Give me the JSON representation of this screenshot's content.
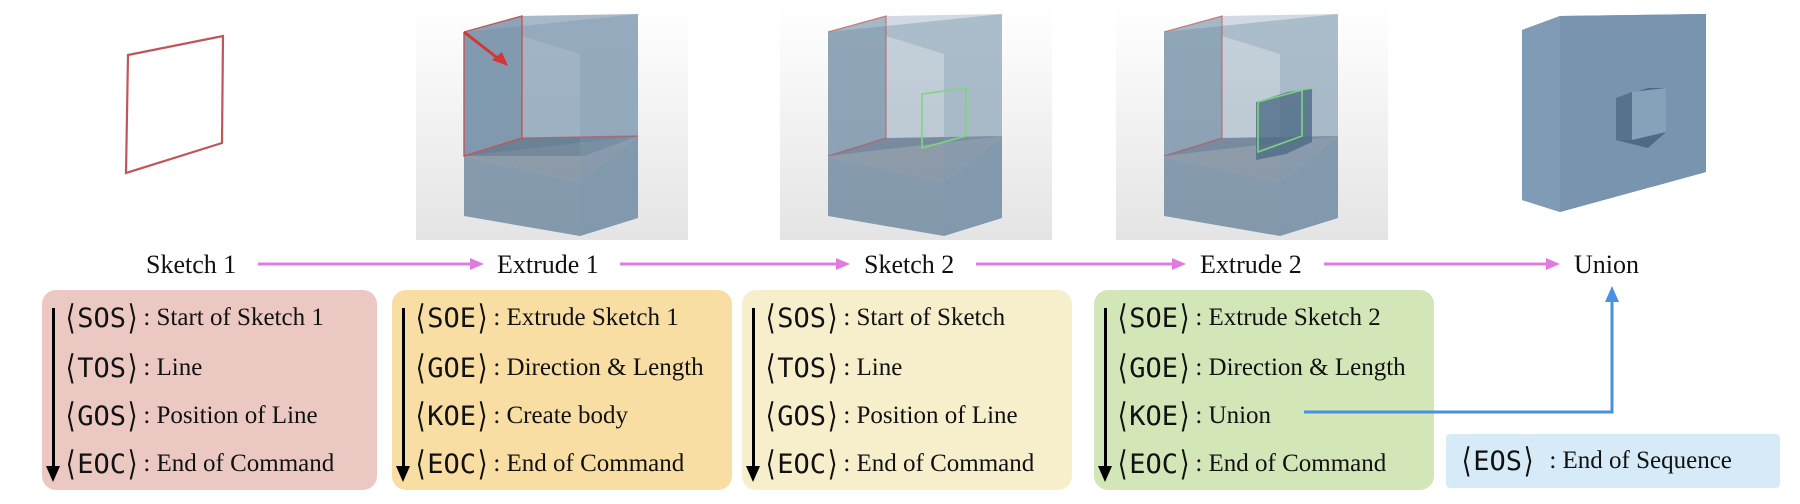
{
  "stages": [
    "Sketch 1",
    "Extrude 1",
    "Sketch 2",
    "Extrude 2",
    "Union"
  ],
  "cards": [
    {
      "color": "#ebc9c2",
      "rows": [
        {
          "token": "SOS",
          "desc": ": Start of Sketch 1"
        },
        {
          "token": "TOS",
          "desc": ": Line"
        },
        {
          "token": "GOS",
          "desc": ": Position of Line"
        },
        {
          "token": "EOC",
          "desc": ": End of Command"
        }
      ]
    },
    {
      "color": "#f9dea3",
      "rows": [
        {
          "token": "SOE",
          "desc": ": Extrude Sketch 1"
        },
        {
          "token": "GOE",
          "desc": ": Direction & Length"
        },
        {
          "token": "KOE",
          "desc": ": Create body"
        },
        {
          "token": "EOC",
          "desc": ": End of Command"
        }
      ]
    },
    {
      "color": "#f7eecb",
      "rows": [
        {
          "token": "SOS",
          "desc": ": Start of Sketch"
        },
        {
          "token": "TOS",
          "desc": ": Line"
        },
        {
          "token": "GOS",
          "desc": ": Position of Line"
        },
        {
          "token": "EOC",
          "desc": ": End of Command"
        }
      ]
    },
    {
      "color": "#d3e6b7",
      "rows": [
        {
          "token": "SOE",
          "desc": ": Extrude Sketch 2"
        },
        {
          "token": "GOE",
          "desc": ": Direction & Length"
        },
        {
          "token": "KOE",
          "desc": ": Union"
        },
        {
          "token": "EOC",
          "desc": ": End of Command"
        }
      ]
    }
  ],
  "eos": {
    "token": "EOS",
    "desc": ": End of Sequence",
    "color": "#d6eaf8"
  },
  "colors": {
    "flow_arrow": "#e07ce0",
    "union_arrow": "#4a90e2",
    "sketch_line": "#c0555a",
    "sketch2_line": "#7cd67c",
    "box_face": "#7e98b0"
  }
}
